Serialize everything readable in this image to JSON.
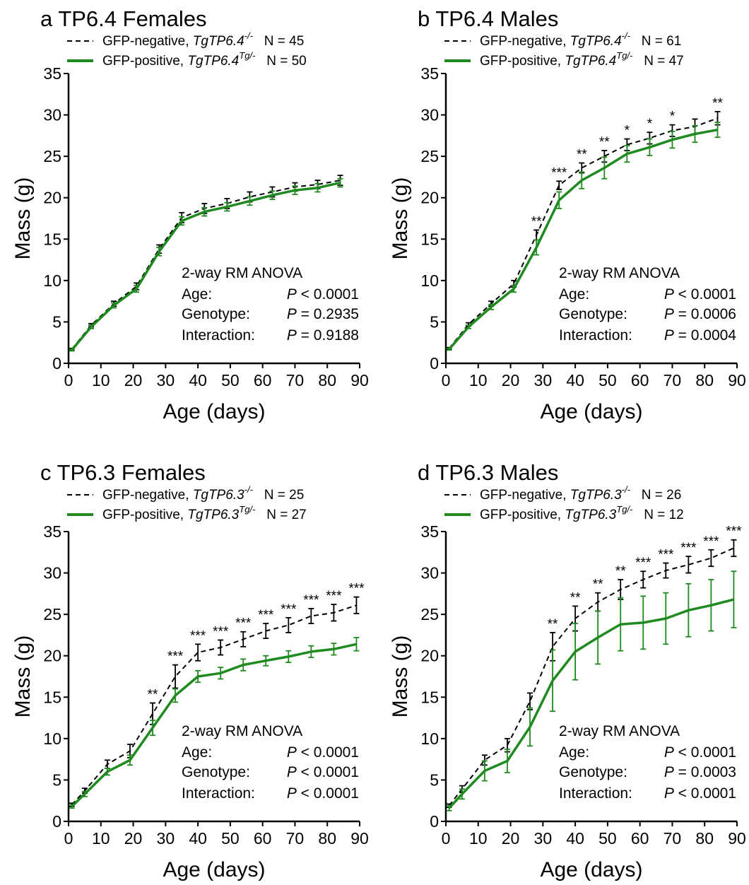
{
  "panels": [
    {
      "letter": "a",
      "title": "TP6.4 Females",
      "legend": [
        {
          "prefix": "GFP-negative, ",
          "italic": "TgTP6.4",
          "sup": "-/-",
          "n": "N = 45"
        },
        {
          "prefix": "GFP-positive, ",
          "italic": "TgTP6.4",
          "sup": "Tg/-",
          "n": "N = 50"
        }
      ],
      "stats": {
        "title": "2-way RM ANOVA",
        "rows": [
          {
            "label": "Age:",
            "p": "P",
            "value": " < 0.0001"
          },
          {
            "label": "Genotype:",
            "p": "P",
            "value": " = 0.2935"
          },
          {
            "label": "Interaction:",
            "p": "P",
            "value": " = 0.9188"
          }
        ]
      }
    },
    {
      "letter": "b",
      "title": "TP6.4 Males",
      "legend": [
        {
          "prefix": "GFP-negative, ",
          "italic": "TgTP6.4",
          "sup": "-/-",
          "n": "N = 61"
        },
        {
          "prefix": "GFP-positive, ",
          "italic": "TgTP6.4",
          "sup": "Tg/-",
          "n": "N = 47"
        }
      ],
      "stats": {
        "title": "2-way RM ANOVA",
        "rows": [
          {
            "label": "Age:",
            "p": "P",
            "value": " < 0.0001"
          },
          {
            "label": "Genotype:",
            "p": "P",
            "value": " = 0.0006"
          },
          {
            "label": "Interaction:",
            "p": "P",
            "value": " = 0.0004"
          }
        ]
      }
    },
    {
      "letter": "c",
      "title": "TP6.3 Females",
      "legend": [
        {
          "prefix": "GFP-negative, ",
          "italic": "TgTP6.3",
          "sup": "-/-",
          "n": "N = 25"
        },
        {
          "prefix": "GFP-positive, ",
          "italic": "TgTP6.3",
          "sup": "Tg/-",
          "n": "N = 27"
        }
      ],
      "stats": {
        "title": "2-way RM ANOVA",
        "rows": [
          {
            "label": "Age:",
            "p": "P",
            "value": " < 0.0001"
          },
          {
            "label": "Genotype:",
            "p": "P",
            "value": " < 0.0001"
          },
          {
            "label": "Interaction:",
            "p": "P",
            "value": " < 0.0001"
          }
        ]
      }
    },
    {
      "letter": "d",
      "title": "TP6.3 Males",
      "legend": [
        {
          "prefix": "GFP-negative, ",
          "italic": "TgTP6.3",
          "sup": "-/-",
          "n": "N = 26"
        },
        {
          "prefix": "GFP-positive, ",
          "italic": "TgTP6.3",
          "sup": "Tg/-",
          "n": "N = 12"
        }
      ],
      "stats": {
        "title": "2-way RM ANOVA",
        "rows": [
          {
            "label": "Age:",
            "p": "P",
            "value": " < 0.0001"
          },
          {
            "label": "Genotype:",
            "p": "P",
            "value": " = 0.0003"
          },
          {
            "label": "Interaction:",
            "p": "P",
            "value": " < 0.0001"
          }
        ]
      }
    }
  ],
  "colors": {
    "negative": "#000000",
    "positive": "#1f8a1f"
  },
  "chart_data": [
    {
      "type": "line",
      "title": "TP6.4 Females",
      "xlabel": "Age (days)",
      "ylabel": "Mass (g)",
      "xlim": [
        0,
        90
      ],
      "ylim": [
        0,
        35
      ],
      "xticks": [
        0,
        10,
        20,
        30,
        40,
        50,
        60,
        70,
        80,
        90
      ],
      "yticks": [
        0,
        5,
        10,
        15,
        20,
        25,
        30,
        35
      ],
      "x": [
        1,
        7,
        14,
        21,
        28,
        35,
        42,
        49,
        56,
        63,
        70,
        77,
        84
      ],
      "series": [
        {
          "name": "GFP-negative, TgTP6.4-/-",
          "style": "dashed",
          "color": "#000000",
          "values": [
            1.7,
            4.6,
            7.2,
            9.3,
            13.8,
            17.6,
            18.7,
            19.3,
            20.1,
            20.7,
            21.3,
            21.6,
            22.1
          ],
          "error": [
            0.1,
            0.2,
            0.3,
            0.4,
            0.5,
            0.6,
            0.6,
            0.6,
            0.6,
            0.6,
            0.5,
            0.5,
            0.6
          ]
        },
        {
          "name": "GFP-positive, TgTP6.4Tg/-",
          "style": "solid",
          "color": "#1f8a1f",
          "values": [
            1.6,
            4.4,
            7.0,
            9.0,
            13.5,
            17.2,
            18.3,
            18.9,
            19.6,
            20.3,
            20.9,
            21.2,
            21.8
          ],
          "error": [
            0.1,
            0.2,
            0.3,
            0.4,
            0.5,
            0.5,
            0.5,
            0.5,
            0.5,
            0.5,
            0.5,
            0.5,
            0.5
          ]
        }
      ],
      "significance": []
    },
    {
      "type": "line",
      "title": "TP6.4 Males",
      "xlabel": "Age (days)",
      "ylabel": "Mass (g)",
      "xlim": [
        0,
        90
      ],
      "ylim": [
        0,
        35
      ],
      "xticks": [
        0,
        10,
        20,
        30,
        40,
        50,
        60,
        70,
        80,
        90
      ],
      "yticks": [
        0,
        5,
        10,
        15,
        20,
        25,
        30,
        35
      ],
      "x": [
        1,
        7,
        14,
        21,
        28,
        35,
        42,
        49,
        56,
        63,
        70,
        77,
        84
      ],
      "series": [
        {
          "name": "GFP-negative, TgTP6.4-/-",
          "style": "dashed",
          "color": "#000000",
          "values": [
            1.8,
            4.7,
            7.2,
            9.6,
            15.5,
            21.5,
            23.6,
            25.0,
            26.4,
            27.2,
            28.1,
            28.6,
            29.6
          ],
          "error": [
            0.1,
            0.2,
            0.3,
            0.4,
            0.6,
            0.5,
            0.6,
            0.7,
            0.7,
            0.7,
            0.7,
            0.9,
            0.8
          ]
        },
        {
          "name": "GFP-positive, TgTP6.4Tg/-",
          "style": "solid",
          "color": "#1f8a1f",
          "values": [
            1.7,
            4.4,
            6.8,
            9.0,
            14.0,
            19.7,
            22.1,
            23.6,
            25.3,
            26.1,
            27.0,
            27.7,
            28.2
          ],
          "error": [
            0.1,
            0.2,
            0.3,
            0.4,
            0.9,
            1.0,
            1.0,
            1.3,
            1.0,
            1.0,
            1.0,
            1.0,
            0.9
          ]
        }
      ],
      "significance": [
        {
          "x": 28,
          "label": "**"
        },
        {
          "x": 35,
          "label": "***"
        },
        {
          "x": 42,
          "label": "**"
        },
        {
          "x": 49,
          "label": "**"
        },
        {
          "x": 56,
          "label": "*"
        },
        {
          "x": 63,
          "label": "*"
        },
        {
          "x": 70,
          "label": "*"
        },
        {
          "x": 84,
          "label": "**"
        }
      ]
    },
    {
      "type": "line",
      "title": "TP6.3 Females",
      "xlabel": "Age (days)",
      "ylabel": "Mass (g)",
      "xlim": [
        0,
        90
      ],
      "ylim": [
        0,
        35
      ],
      "xticks": [
        0,
        10,
        20,
        30,
        40,
        50,
        60,
        70,
        80,
        90
      ],
      "yticks": [
        0,
        5,
        10,
        15,
        20,
        25,
        30,
        35
      ],
      "x": [
        1,
        5,
        12,
        19,
        26,
        33,
        40,
        47,
        54,
        61,
        68,
        75,
        82,
        89
      ],
      "series": [
        {
          "name": "GFP-negative, TgTP6.3-/-",
          "style": "dashed",
          "color": "#000000",
          "values": [
            2.0,
            3.7,
            6.9,
            8.5,
            13.0,
            17.5,
            20.4,
            21.0,
            22.0,
            23.0,
            23.7,
            24.8,
            25.2,
            26.1
          ],
          "error": [
            0.2,
            0.3,
            0.5,
            0.8,
            1.3,
            1.4,
            1.0,
            0.9,
            0.9,
            0.9,
            0.9,
            0.9,
            1.0,
            1.0
          ]
        },
        {
          "name": "GFP-positive, TgTP6.3Tg/-",
          "style": "solid",
          "color": "#1f8a1f",
          "values": [
            1.8,
            3.3,
            6.0,
            7.4,
            11.3,
            15.2,
            17.5,
            17.9,
            18.9,
            19.4,
            19.9,
            20.5,
            20.8,
            21.4
          ],
          "error": [
            0.2,
            0.3,
            0.4,
            0.6,
            0.9,
            0.8,
            0.7,
            0.7,
            0.7,
            0.6,
            0.7,
            0.7,
            0.7,
            0.8
          ]
        }
      ],
      "significance": [
        {
          "x": 26,
          "label": "**"
        },
        {
          "x": 33,
          "label": "***"
        },
        {
          "x": 40,
          "label": "***"
        },
        {
          "x": 47,
          "label": "***"
        },
        {
          "x": 54,
          "label": "***"
        },
        {
          "x": 61,
          "label": "***"
        },
        {
          "x": 68,
          "label": "***"
        },
        {
          "x": 75,
          "label": "***"
        },
        {
          "x": 82,
          "label": "***"
        },
        {
          "x": 89,
          "label": "***"
        }
      ]
    },
    {
      "type": "line",
      "title": "TP6.3 Males",
      "xlabel": "Age (days)",
      "ylabel": "Mass (g)",
      "xlim": [
        0,
        90
      ],
      "ylim": [
        0,
        35
      ],
      "xticks": [
        0,
        10,
        20,
        30,
        40,
        50,
        60,
        70,
        80,
        90
      ],
      "yticks": [
        0,
        5,
        10,
        15,
        20,
        25,
        30,
        35
      ],
      "x": [
        1,
        5,
        12,
        19,
        26,
        33,
        40,
        47,
        54,
        61,
        68,
        75,
        82,
        89
      ],
      "series": [
        {
          "name": "GFP-negative, TgTP6.3-/-",
          "style": "dashed",
          "color": "#000000",
          "values": [
            1.9,
            3.9,
            7.4,
            9.2,
            14.5,
            21.1,
            24.5,
            26.5,
            28.0,
            29.2,
            30.3,
            31.0,
            31.8,
            33.0
          ],
          "error": [
            0.2,
            0.4,
            0.6,
            0.8,
            1.0,
            1.7,
            1.5,
            1.1,
            1.2,
            1.0,
            0.9,
            1.0,
            1.0,
            1.0
          ]
        },
        {
          "name": "GFP-positive, TgTP6.3Tg/-",
          "style": "solid",
          "color": "#1f8a1f",
          "values": [
            1.6,
            3.3,
            6.1,
            7.3,
            11.4,
            17.0,
            20.5,
            22.2,
            23.8,
            24.0,
            24.5,
            25.5,
            26.1,
            26.8
          ],
          "error": [
            0.3,
            0.6,
            1.2,
            1.4,
            2.3,
            3.7,
            3.4,
            3.2,
            3.2,
            3.2,
            3.1,
            3.2,
            3.1,
            3.4
          ]
        }
      ],
      "significance": [
        {
          "x": 33,
          "label": "**"
        },
        {
          "x": 40,
          "label": "**"
        },
        {
          "x": 47,
          "label": "**"
        },
        {
          "x": 54,
          "label": "**"
        },
        {
          "x": 61,
          "label": "***"
        },
        {
          "x": 68,
          "label": "***"
        },
        {
          "x": 75,
          "label": "***"
        },
        {
          "x": 82,
          "label": "***"
        },
        {
          "x": 89,
          "label": "***"
        }
      ]
    }
  ]
}
